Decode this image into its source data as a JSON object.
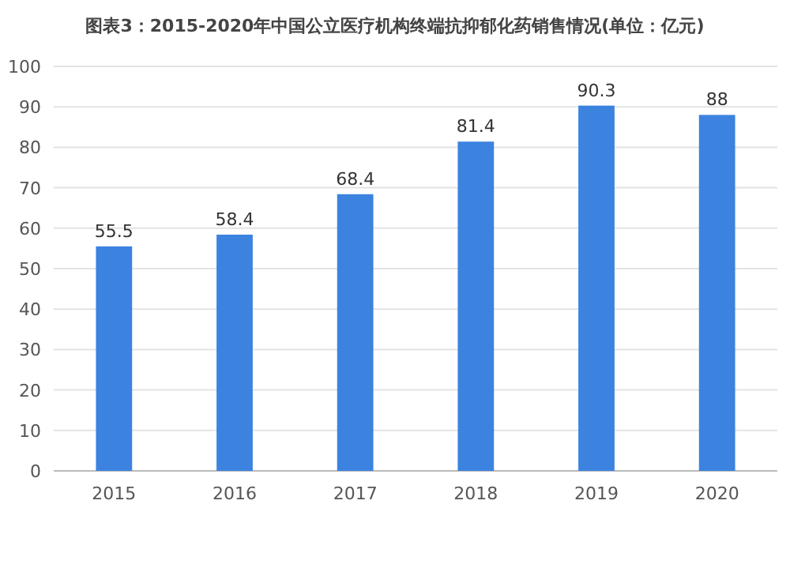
{
  "chart_data": {
    "type": "bar",
    "title": "图表3：2015-2020年中国公立医疗机构终端抗抑郁化药销售情况(单位：亿元)",
    "categories": [
      "2015",
      "2016",
      "2017",
      "2018",
      "2019",
      "2020"
    ],
    "values": [
      55.5,
      58.4,
      68.4,
      81.4,
      90.3,
      88
    ],
    "color": "#3c83e0",
    "ylim": [
      0,
      100
    ],
    "yticks": [
      0,
      10,
      20,
      30,
      40,
      50,
      60,
      70,
      80,
      90,
      100
    ],
    "grid": "y",
    "data_labels": true
  }
}
